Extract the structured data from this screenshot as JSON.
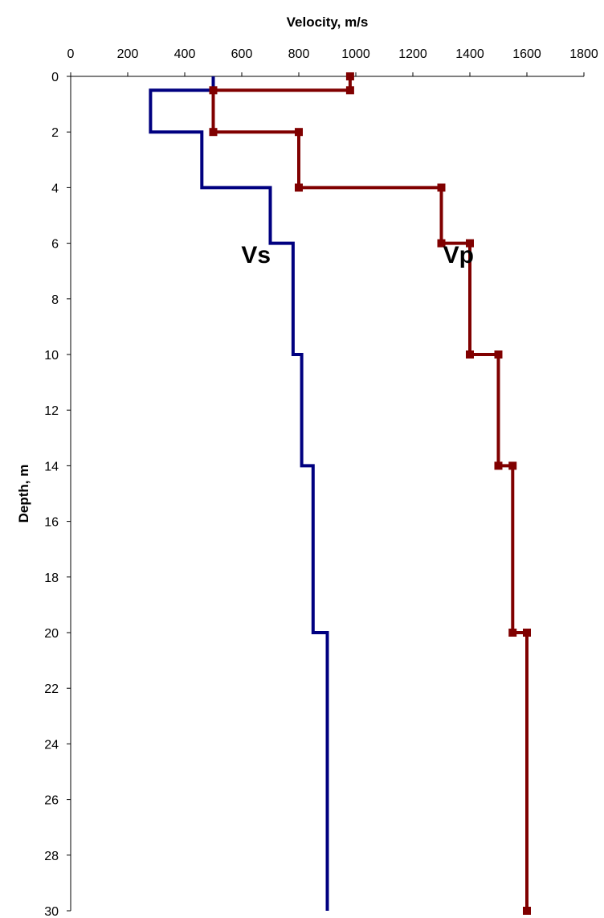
{
  "chart_data": {
    "type": "line",
    "title": "",
    "xlabel": "Velocity, m/s",
    "ylabel": "Depth, m",
    "x_axis_position": "top",
    "y_axis_inverted": true,
    "xlim": [
      0,
      1800
    ],
    "ylim": [
      0,
      30
    ],
    "x_ticks": [
      0,
      200,
      400,
      600,
      800,
      1000,
      1200,
      1400,
      1600,
      1800
    ],
    "y_ticks": [
      0,
      2,
      4,
      6,
      8,
      10,
      12,
      14,
      16,
      18,
      20,
      22,
      24,
      26,
      28,
      30
    ],
    "grid": false,
    "legend": "none",
    "series": [
      {
        "name": "Vs",
        "color": "#000080",
        "marker": "none",
        "points": [
          [
            500,
            0
          ],
          [
            500,
            0.5
          ],
          [
            280,
            0.5
          ],
          [
            280,
            2
          ],
          [
            460,
            2
          ],
          [
            460,
            4
          ],
          [
            700,
            4
          ],
          [
            700,
            6
          ],
          [
            780,
            6
          ],
          [
            780,
            10
          ],
          [
            810,
            10
          ],
          [
            810,
            14
          ],
          [
            850,
            14
          ],
          [
            850,
            20
          ],
          [
            900,
            20
          ],
          [
            900,
            30
          ]
        ]
      },
      {
        "name": "Vp",
        "color": "#800000",
        "marker": "square",
        "points": [
          [
            980,
            0
          ],
          [
            980,
            0.5
          ],
          [
            500,
            0.5
          ],
          [
            500,
            2
          ],
          [
            800,
            2
          ],
          [
            800,
            4
          ],
          [
            1300,
            4
          ],
          [
            1300,
            6
          ],
          [
            1400,
            6
          ],
          [
            1400,
            10
          ],
          [
            1500,
            10
          ],
          [
            1500,
            14
          ],
          [
            1550,
            14
          ],
          [
            1550,
            20
          ],
          [
            1600,
            20
          ],
          [
            1600,
            30
          ]
        ]
      }
    ],
    "annotations": [
      {
        "text": "Vs",
        "x": 650,
        "y": 6.7
      },
      {
        "text": "Vp",
        "x": 1360,
        "y": 6.7
      }
    ]
  }
}
